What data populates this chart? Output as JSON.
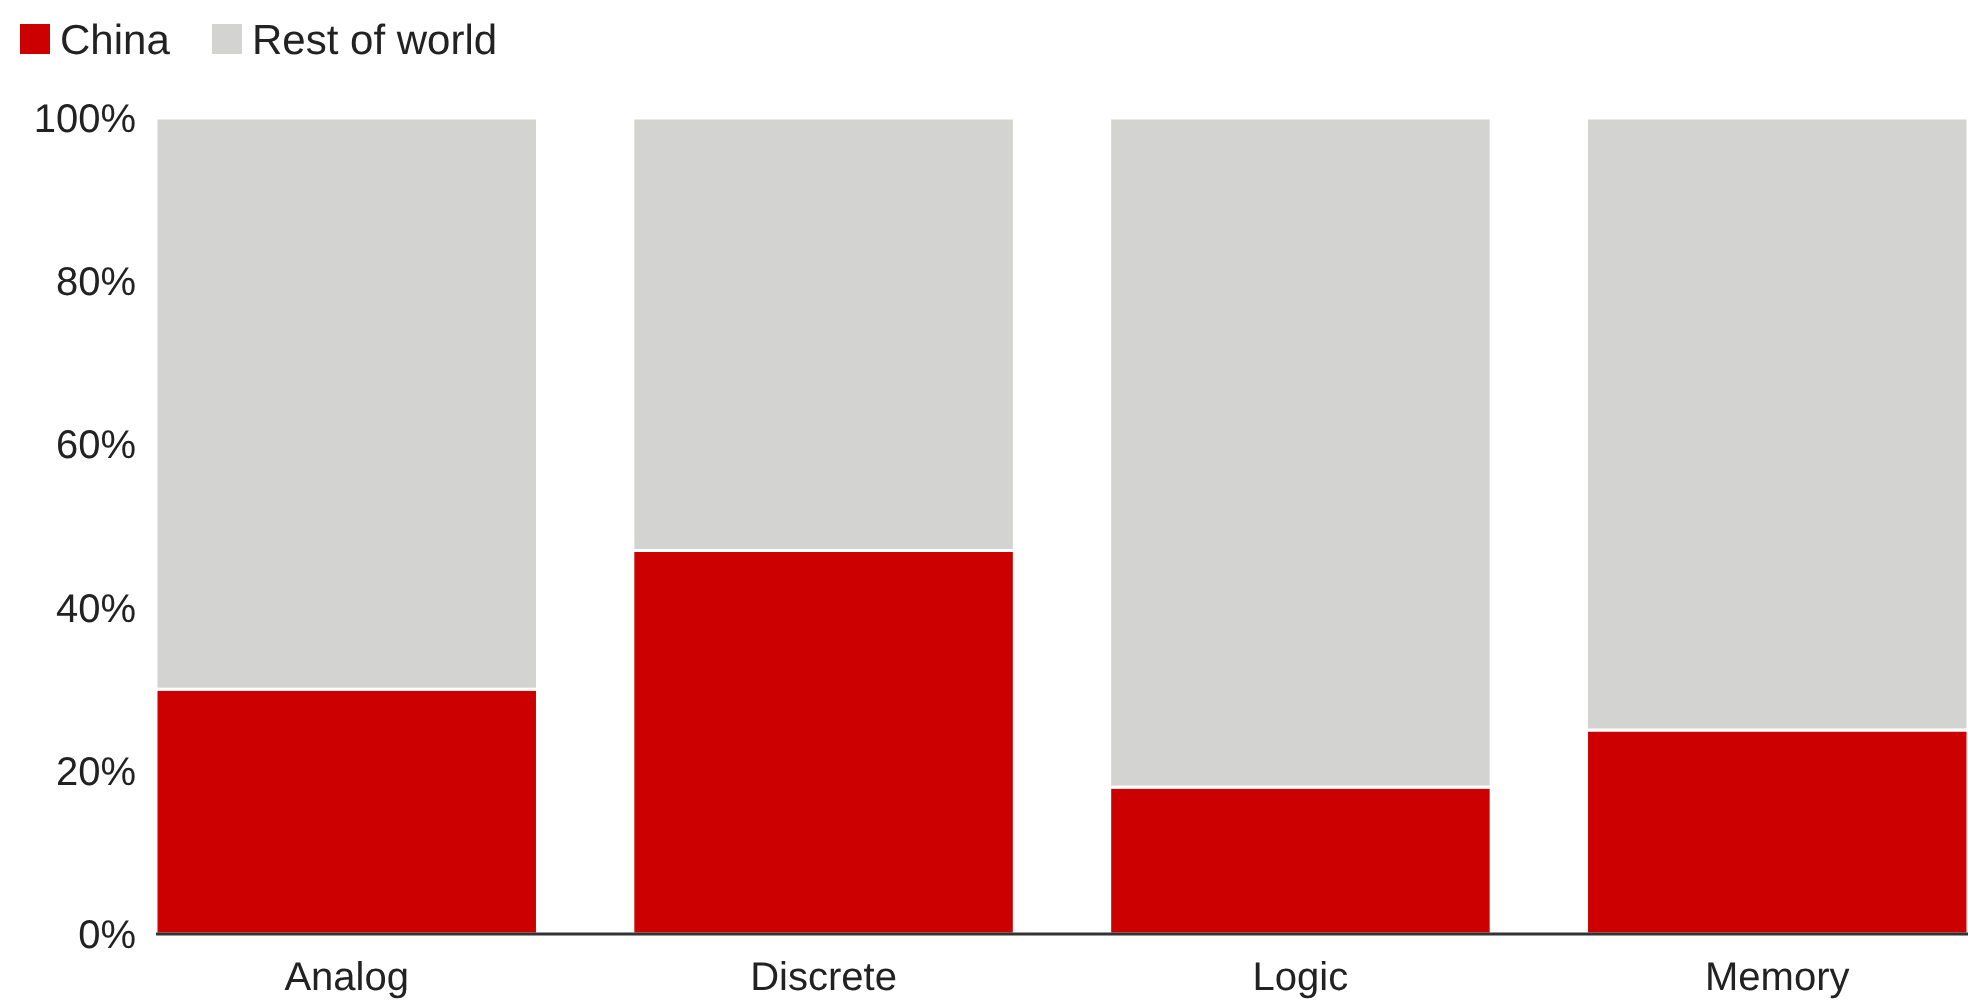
{
  "chart_data": {
    "type": "bar",
    "stacked": true,
    "categories": [
      "Analog",
      "Discrete",
      "Logic",
      "Memory"
    ],
    "series": [
      {
        "name": "China",
        "color": "#cc0000",
        "values": [
          30,
          47,
          18,
          25
        ]
      },
      {
        "name": "Rest of world",
        "color": "#d3d3d1",
        "values": [
          70,
          53,
          82,
          75
        ]
      }
    ],
    "ylim": [
      0,
      100
    ],
    "yticks": [
      {
        "value": 0,
        "label": "0%"
      },
      {
        "value": 20,
        "label": "20%"
      },
      {
        "value": 40,
        "label": "40%"
      },
      {
        "value": 60,
        "label": "60%"
      },
      {
        "value": 80,
        "label": "80%"
      },
      {
        "value": 100,
        "label": "100%"
      }
    ],
    "legend": "top left"
  }
}
